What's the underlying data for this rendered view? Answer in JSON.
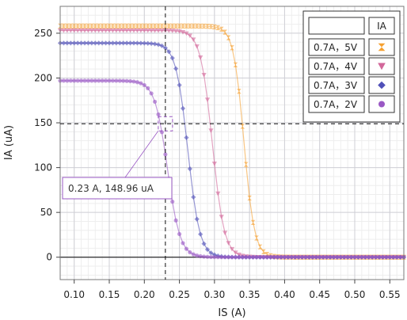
{
  "chart_data": {
    "type": "scatter",
    "xlabel": "IS (A)",
    "ylabel": "IA (uA)",
    "xlim": [
      0.08,
      0.57
    ],
    "ylim": [
      -25,
      280
    ],
    "xticks": [
      0.1,
      0.15,
      0.2,
      0.25,
      0.3,
      0.35,
      0.4,
      0.45,
      0.5,
      0.55
    ],
    "xtick_labels": [
      "0.10",
      "0.15",
      "0.20",
      "0.25",
      "0.30",
      "0.35",
      "0.40",
      "0.45",
      "0.50",
      "0.55"
    ],
    "yticks": [
      0,
      50,
      100,
      150,
      200,
      250
    ],
    "ytick_labels": [
      "0",
      "50",
      "100",
      "150",
      "200",
      "250"
    ],
    "grid": true,
    "legend_position": "top-right",
    "legend_header": "IA",
    "series": [
      {
        "name": "0.7A，5V",
        "color": "#f5a030",
        "marker": "hourglass",
        "imax": 258,
        "xc": 0.342,
        "w": 0.0075
      },
      {
        "name": "0.7A，4V",
        "color": "#d2679a",
        "marker": "triangle-down",
        "imax": 253,
        "xc": 0.297,
        "w": 0.0085
      },
      {
        "name": "0.7A，3V",
        "color": "#5050b8",
        "marker": "diamond",
        "imax": 239,
        "xc": 0.262,
        "w": 0.0085
      },
      {
        "name": "0.7A，2V",
        "color": "#9a58c4",
        "marker": "circle",
        "imax": 197,
        "xc": 0.233,
        "w": 0.009
      }
    ],
    "crosshair": {
      "x": 0.23,
      "y": 148.96
    },
    "annotation": "0.23 A, 148.96 uA"
  }
}
